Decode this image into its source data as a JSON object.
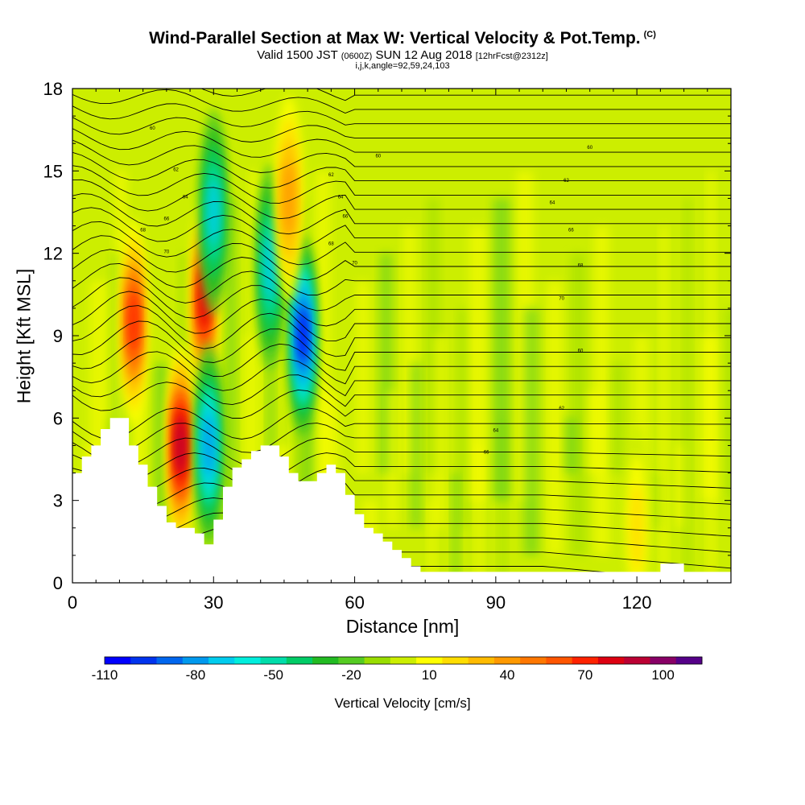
{
  "title": "Wind-Parallel Section at Max W: Vertical Velocity & Pot.Temp.",
  "copyright_mark": "(C)",
  "subtitle_prefix": "Valid 1500 JST",
  "subtitle_zulu": "(0600Z)",
  "subtitle_date": "SUN 12 Aug 2018",
  "subtitle_fcst": "[12hrFcst@2312z]",
  "meta": "i,j,k,angle=92,59,24,103",
  "colors": {
    "terrain": "#ffffff",
    "contour": "#000000",
    "frame": "#000000"
  },
  "chart_data": {
    "type": "heatmap",
    "title": "Wind-Parallel Section at Max W: Vertical Velocity & Pot.Temp.",
    "xlabel": "Distance [nm]",
    "ylabel": "Height [Kft MSL]",
    "xlim": [
      0,
      140
    ],
    "ylim": [
      0,
      18
    ],
    "x_ticks": [
      0,
      30,
      60,
      90,
      120
    ],
    "y_ticks": [
      0,
      3,
      6,
      9,
      12,
      15,
      18
    ],
    "colorbar": {
      "label": "Vertical Velocity [cm/s]",
      "tick_labels": [
        -110,
        -80,
        -50,
        -20,
        10,
        40,
        70,
        100
      ],
      "levels": [
        -110,
        -100,
        -90,
        -80,
        -70,
        -60,
        -50,
        -40,
        -30,
        -20,
        -10,
        0,
        10,
        20,
        30,
        40,
        50,
        60,
        70,
        80,
        90,
        100,
        110
      ],
      "colors": [
        "#0000ff",
        "#0033ee",
        "#0066ee",
        "#0099ee",
        "#00ccee",
        "#00eedd",
        "#00ddaa",
        "#00cc66",
        "#22bb22",
        "#55cc22",
        "#99dd00",
        "#ccee00",
        "#ffff00",
        "#ffdd00",
        "#ffbb00",
        "#ff9900",
        "#ff7700",
        "#ff5500",
        "#ff2200",
        "#dd0011",
        "#bb0033",
        "#880066",
        "#550088"
      ]
    },
    "features": [
      {
        "name": "updraft",
        "x": 13,
        "y": 9.5,
        "w": 80
      },
      {
        "name": "updraft",
        "x": 23,
        "y": 5.0,
        "w": 100
      },
      {
        "name": "updraft",
        "x": 28,
        "y": 10.3,
        "w": 85
      },
      {
        "name": "downdraft",
        "x": 30,
        "y": 13.5,
        "w": -60
      },
      {
        "name": "downdraft",
        "x": 29,
        "y": 5.0,
        "w": -75
      },
      {
        "name": "downdraft",
        "x": 42,
        "y": 11.5,
        "w": -60
      },
      {
        "name": "downdraft",
        "x": 49,
        "y": 9.0,
        "w": -100
      },
      {
        "name": "updraft",
        "x": 46,
        "y": 14.0,
        "w": 45
      },
      {
        "name": "updraft",
        "x": 120,
        "y": 2.0,
        "w": 30
      }
    ],
    "terrain_kft": [
      [
        0,
        4.0
      ],
      [
        2,
        4.6
      ],
      [
        4,
        5.0
      ],
      [
        6,
        5.6
      ],
      [
        8,
        6.0
      ],
      [
        10,
        6.0
      ],
      [
        12,
        5.0
      ],
      [
        14,
        4.3
      ],
      [
        16,
        3.5
      ],
      [
        18,
        2.8
      ],
      [
        20,
        2.2
      ],
      [
        22,
        2.0
      ],
      [
        24,
        2.0
      ],
      [
        26,
        1.8
      ],
      [
        28,
        1.4
      ],
      [
        30,
        2.3
      ],
      [
        32,
        3.5
      ],
      [
        34,
        4.2
      ],
      [
        36,
        4.5
      ],
      [
        38,
        4.8
      ],
      [
        40,
        5.0
      ],
      [
        42,
        5.0
      ],
      [
        44,
        4.6
      ],
      [
        46,
        4.0
      ],
      [
        48,
        3.7
      ],
      [
        50,
        3.7
      ],
      [
        52,
        4.0
      ],
      [
        54,
        4.3
      ],
      [
        56,
        4.0
      ],
      [
        58,
        3.2
      ],
      [
        60,
        2.5
      ],
      [
        62,
        2.0
      ],
      [
        64,
        1.8
      ],
      [
        66,
        1.5
      ],
      [
        68,
        1.2
      ],
      [
        70,
        0.9
      ],
      [
        72,
        0.6
      ],
      [
        74,
        0.4
      ],
      [
        80,
        0.4
      ],
      [
        100,
        0.4
      ],
      [
        124,
        0.4
      ],
      [
        125,
        0.7
      ],
      [
        129,
        0.7
      ],
      [
        130,
        0.4
      ],
      [
        140,
        0.4
      ]
    ],
    "theta_contour_labels": [
      "60",
      "62",
      "64",
      "66",
      "68",
      "70"
    ]
  }
}
